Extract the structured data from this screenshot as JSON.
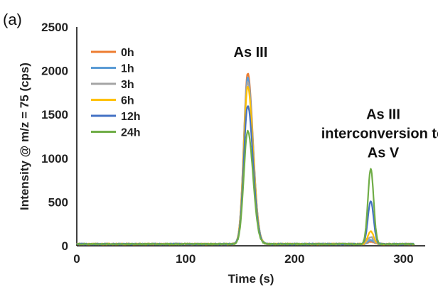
{
  "chart_data": {
    "type": "line",
    "panel_label": "(a)",
    "xlabel": "Time (s)",
    "ylabel": "Intensity @ m/z = 75 (cps)",
    "xlim": [
      0,
      320
    ],
    "ylim": [
      0,
      2500
    ],
    "xticks": [
      0,
      100,
      200,
      300
    ],
    "yticks": [
      0,
      500,
      1000,
      1500,
      2000,
      2500
    ],
    "grid": false,
    "legend": {
      "position": "top-left",
      "entries": [
        "0h",
        "1h",
        "3h",
        "6h",
        "12h",
        "24h"
      ]
    },
    "annotations": [
      {
        "lines": [
          "As III"
        ],
        "x": 157,
        "y": 2160
      },
      {
        "lines": [
          "As III",
          "interconversion to",
          "As V"
        ],
        "x": 270,
        "y": 1450
      }
    ],
    "series": [
      {
        "name": "0h",
        "color": "#ED7D31",
        "peaks": [
          {
            "center": 157,
            "height": 1950
          },
          {
            "center": 270,
            "height": 30
          }
        ]
      },
      {
        "name": "1h",
        "color": "#5B9BD5",
        "peaks": [
          {
            "center": 157,
            "height": 1900
          },
          {
            "center": 270,
            "height": 45
          }
        ]
      },
      {
        "name": "3h",
        "color": "#A5A5A5",
        "peaks": [
          {
            "center": 157,
            "height": 1850
          },
          {
            "center": 270,
            "height": 80
          }
        ]
      },
      {
        "name": "6h",
        "color": "#FFC000",
        "peaks": [
          {
            "center": 157,
            "height": 1800
          },
          {
            "center": 270,
            "height": 150
          }
        ]
      },
      {
        "name": "12h",
        "color": "#4472C4",
        "peaks": [
          {
            "center": 157,
            "height": 1580
          },
          {
            "center": 270,
            "height": 490
          }
        ]
      },
      {
        "name": "24h",
        "color": "#70AD47",
        "peaks": [
          {
            "center": 157,
            "height": 1290
          },
          {
            "center": 270,
            "height": 860
          }
        ]
      }
    ],
    "x_start": 0,
    "x_end": 310,
    "baseline": 20
  }
}
